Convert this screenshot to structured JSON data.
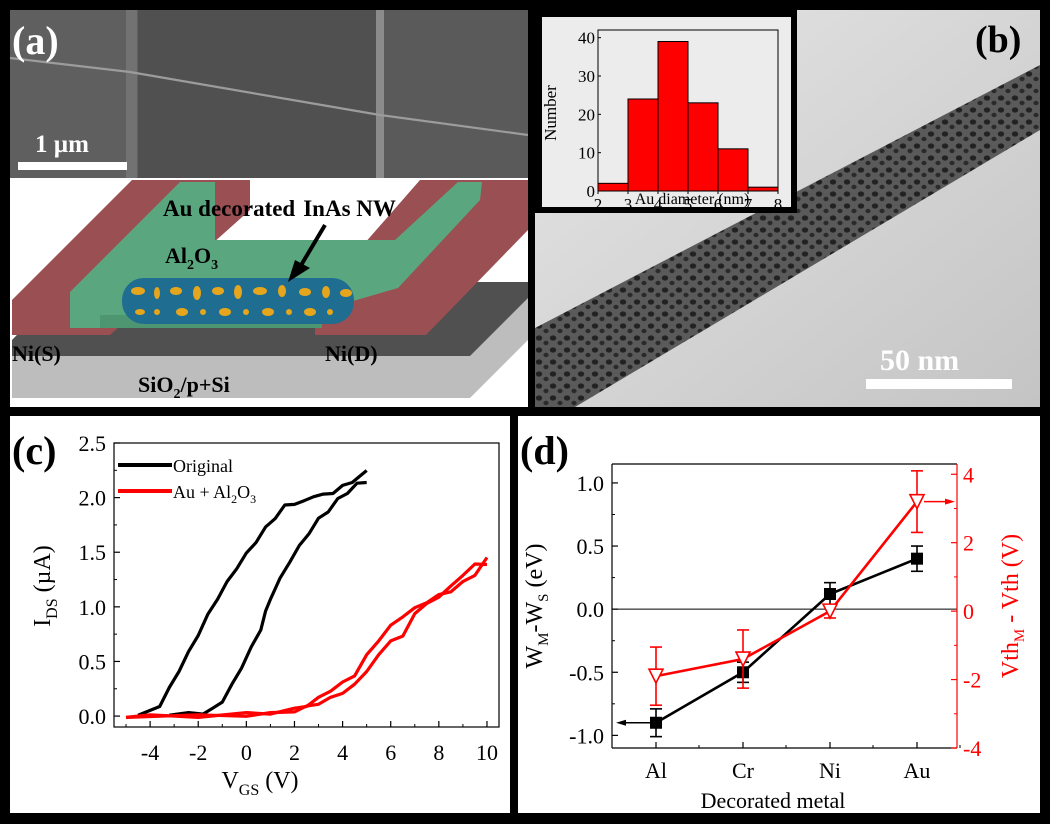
{
  "figure": {
    "panels": {
      "a": {
        "label": "(a)",
        "sem_scalebar": "1 µm",
        "schematic": {
          "nw_label_1": "Au decorated",
          "nw_label_2": "InAs NW",
          "oxide_main": "Al",
          "oxide_sub1": "2",
          "oxide_mid": "O",
          "oxide_sub2": "3",
          "source": "Ni(S)",
          "drain": "Ni(D)",
          "substrate_1": "SiO",
          "substrate_sub": "2",
          "substrate_2": "/p+Si"
        },
        "colors": {
          "contact": "#9a4f52",
          "oxide": "#5aa77f",
          "nanowire": "#1f6e91",
          "au": "#e5a51c",
          "substrate": "#bdbdbd",
          "sem_bg": "#5a5a5a"
        }
      },
      "b": {
        "label": "(b)",
        "tem_scalebar": "50 nm",
        "inset": {
          "ylabel": "Number",
          "xlabel": "Au diameter (nm)"
        }
      },
      "c": {
        "label": "(c)"
      },
      "d": {
        "label": "(d)"
      }
    }
  },
  "chart_data": [
    {
      "id": "b-inset",
      "type": "bar",
      "title": "",
      "xlabel": "Au diameter (nm)",
      "ylabel": "Number",
      "bins": [
        [
          2,
          3
        ],
        [
          3,
          4
        ],
        [
          4,
          5
        ],
        [
          5,
          6
        ],
        [
          6,
          7
        ],
        [
          7,
          8
        ]
      ],
      "values": [
        2,
        24,
        39,
        23,
        11,
        1
      ],
      "xlim": [
        2,
        8
      ],
      "ylim": [
        0,
        42
      ],
      "xticks": [
        "2",
        "3",
        "4",
        "5",
        "6",
        "7",
        "8"
      ],
      "yticks": [
        "0",
        "10",
        "20",
        "30",
        "40"
      ],
      "color": "#ff0000"
    },
    {
      "id": "c",
      "type": "line",
      "xlabel_main": "V",
      "xlabel_sub": "GS",
      "xlabel_unit": " (V)",
      "ylabel_main": "I",
      "ylabel_sub": "DS",
      "ylabel_unit": " (µA)",
      "xlim": [
        -5.5,
        10.5
      ],
      "ylim": [
        -0.1,
        2.5
      ],
      "xticks": [
        "-4",
        "-2",
        "0",
        "2",
        "4",
        "6",
        "8",
        "10"
      ],
      "xtick_values": [
        -4,
        -2,
        0,
        2,
        4,
        6,
        8,
        10
      ],
      "yticks": [
        "0.0",
        "0.5",
        "1.0",
        "1.5",
        "2.0",
        "2.5"
      ],
      "ytick_values": [
        0,
        0.5,
        1.0,
        1.5,
        2.0,
        2.5
      ],
      "legend": [
        {
          "name": "Original",
          "color": "#000000"
        },
        {
          "name_main": "Au + Al",
          "name_sub1": "2",
          "name_mid": "O",
          "name_sub2": "3",
          "color": "#ff0000"
        }
      ],
      "legend_position": "top-left",
      "series": [
        {
          "name": "Original (forward)",
          "color": "#000000",
          "x": [
            -4.5,
            -4.0,
            -3.6,
            -3.2,
            -2.8,
            -2.4,
            -2.0,
            -1.6,
            -1.2,
            -0.8,
            -0.4,
            0.0,
            0.4,
            0.8,
            1.2,
            1.6,
            2.0,
            2.4,
            2.8,
            3.2,
            3.6,
            4.0,
            4.4,
            4.8,
            5.0
          ],
          "y": [
            0.02,
            0.04,
            0.1,
            0.25,
            0.42,
            0.58,
            0.75,
            0.92,
            1.08,
            1.22,
            1.36,
            1.48,
            1.6,
            1.72,
            1.82,
            1.92,
            1.95,
            1.96,
            2.02,
            2.02,
            2.05,
            2.1,
            2.15,
            2.2,
            2.26
          ]
        },
        {
          "name": "Original (reverse)",
          "color": "#000000",
          "x": [
            5.0,
            4.6,
            4.2,
            3.8,
            3.4,
            3.0,
            2.6,
            2.2,
            1.8,
            1.4,
            1.0,
            0.8,
            0.6,
            0.2,
            -0.2,
            -0.6,
            -1.0,
            -1.4,
            -1.8,
            -2.4,
            -3.2
          ],
          "y": [
            2.15,
            2.12,
            2.05,
            1.98,
            1.88,
            1.8,
            1.68,
            1.55,
            1.42,
            1.25,
            1.08,
            0.95,
            0.8,
            0.62,
            0.45,
            0.28,
            0.14,
            0.06,
            0.03,
            0.02,
            0.02
          ]
        },
        {
          "name": "Au + Al2O3 (forward)",
          "color": "#ff0000",
          "x": [
            -5.0,
            -4.0,
            -2.0,
            0.0,
            1.0,
            2.0,
            2.5,
            3.0,
            3.5,
            4.0,
            4.5,
            5.0,
            5.5,
            6.0,
            6.5,
            7.0,
            7.5,
            8.0,
            8.5,
            9.0,
            9.5,
            10.0
          ],
          "y": [
            0.0,
            0.0,
            0.0,
            0.02,
            0.03,
            0.06,
            0.1,
            0.16,
            0.24,
            0.3,
            0.38,
            0.55,
            0.7,
            0.82,
            0.92,
            0.98,
            1.05,
            1.1,
            1.15,
            1.22,
            1.3,
            1.44
          ]
        },
        {
          "name": "Au + Al2O3 (reverse)",
          "color": "#ff0000",
          "x": [
            10.0,
            9.5,
            9.0,
            8.5,
            8.0,
            7.5,
            7.0,
            6.5,
            6.0,
            5.5,
            5.0,
            4.5,
            4.0,
            3.5,
            3.0,
            2.5,
            2.0,
            1.0,
            0.0,
            -2.0,
            -5.0
          ],
          "y": [
            1.4,
            1.38,
            1.3,
            1.18,
            1.1,
            1.02,
            0.95,
            0.72,
            0.7,
            0.55,
            0.42,
            0.28,
            0.22,
            0.16,
            0.12,
            0.08,
            0.05,
            0.02,
            0.01,
            0.0,
            0.0
          ]
        }
      ]
    },
    {
      "id": "d",
      "type": "line",
      "xlabel": "Decorated metal",
      "categories": [
        "Al",
        "Cr",
        "Ni",
        "Au"
      ],
      "left_axis": {
        "label_main": "W",
        "label_sub1": "M",
        "label_mid": "-W",
        "label_sub2": "S",
        "label_unit": " (eV)",
        "ylim": [
          -1.1,
          1.15
        ],
        "yticks": [
          "-1.0",
          "-0.5",
          "0.0",
          "0.5",
          "1.0"
        ],
        "ytick_values": [
          -1.0,
          -0.5,
          0.0,
          0.5,
          1.0
        ]
      },
      "right_axis": {
        "label_main": "Vth",
        "label_sub": "M",
        "label_rest": " - Vth (V)",
        "ylim": [
          -4,
          4.3
        ],
        "yticks": [
          "-4",
          "-2",
          "0",
          "2",
          "4"
        ],
        "ytick_values": [
          -4,
          -2,
          0,
          2,
          4
        ],
        "color": "#ff0000"
      },
      "series": [
        {
          "name": "WM-WS",
          "axis": "left",
          "marker": "filled-square",
          "color": "#000000",
          "values": [
            -0.9,
            -0.5,
            0.12,
            0.4
          ],
          "errors": [
            0.11,
            0.08,
            0.09,
            0.1
          ]
        },
        {
          "name": "VthM - Vth",
          "axis": "right",
          "marker": "open-down-triangle",
          "color": "#ff0000",
          "values": [
            -1.9,
            -1.4,
            0.0,
            3.2
          ],
          "errors": [
            0.85,
            0.85,
            0.2,
            0.9
          ]
        }
      ],
      "reference_line": 0.0
    }
  ]
}
